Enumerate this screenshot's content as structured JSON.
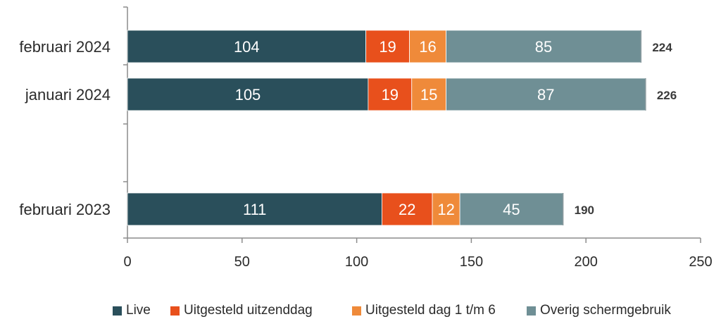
{
  "chart_data": {
    "type": "bar",
    "orientation": "horizontal",
    "stacked": true,
    "categories": [
      "februari 2024",
      "januari 2024",
      "februari 2023"
    ],
    "series": [
      {
        "name": "Live",
        "color": "#2a4f5b",
        "values": [
          104,
          105,
          111
        ]
      },
      {
        "name": "Uitgesteld uitzenddag",
        "color": "#e8501c",
        "values": [
          19,
          19,
          22
        ]
      },
      {
        "name": "Uitgesteld dag 1 t/m 6",
        "color": "#ef8a3a",
        "values": [
          16,
          15,
          12
        ]
      },
      {
        "name": "Overig schermgebruik",
        "color": "#6f8f95",
        "values": [
          85,
          87,
          45
        ]
      }
    ],
    "totals": [
      224,
      226,
      190
    ],
    "xlim": [
      0,
      250
    ],
    "xticks": [
      0,
      50,
      100,
      150,
      200,
      250
    ],
    "grid": false,
    "legend_position": "bottom"
  }
}
